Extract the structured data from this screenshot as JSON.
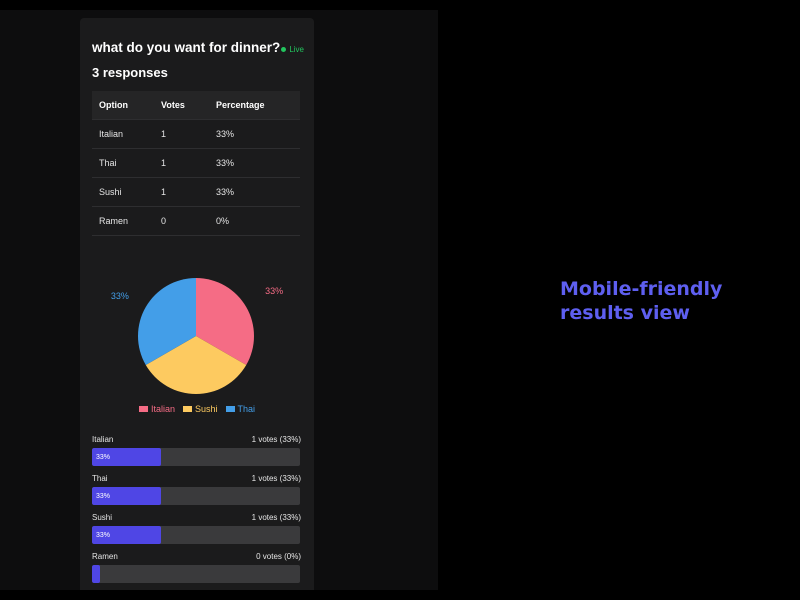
{
  "poll": {
    "title": "what do you want for dinner?",
    "live_label": "Live",
    "responses_label": "3 responses"
  },
  "table": {
    "headers": [
      "Option",
      "Votes",
      "Percentage"
    ],
    "rows": [
      {
        "option": "Italian",
        "votes": "1",
        "percentage": "33%"
      },
      {
        "option": "Thai",
        "votes": "1",
        "percentage": "33%"
      },
      {
        "option": "Sushi",
        "votes": "1",
        "percentage": "33%"
      },
      {
        "option": "Ramen",
        "votes": "0",
        "percentage": "0%"
      }
    ]
  },
  "chart_data": {
    "type": "pie",
    "slices": [
      {
        "label": "Italian",
        "value": 33,
        "display": "33%",
        "color": "#f56c85"
      },
      {
        "label": "Sushi",
        "value": 33,
        "display": "33%",
        "color": "#fdca60"
      },
      {
        "label": "Thai",
        "value": 33,
        "display": "33%",
        "color": "#439ee8"
      }
    ],
    "legend_placement": "bottom"
  },
  "legend": [
    {
      "label": "Italian",
      "color": "#f56c85"
    },
    {
      "label": "Sushi",
      "color": "#fdca60"
    },
    {
      "label": "Thai",
      "color": "#439ee8"
    }
  ],
  "bars": [
    {
      "label": "Italian",
      "summary": "1 votes (33%)",
      "fill_label": "33%",
      "fraction": 0.33
    },
    {
      "label": "Thai",
      "summary": "1 votes (33%)",
      "fill_label": "33%",
      "fraction": 0.33
    },
    {
      "label": "Sushi",
      "summary": "1 votes (33%)",
      "fill_label": "33%",
      "fraction": 0.33
    },
    {
      "label": "Ramen",
      "summary": "0 votes (0%)",
      "fill_label": "",
      "fraction": 0.0
    }
  ],
  "caption": {
    "line1": "Mobile-friendly",
    "line2": "results view"
  },
  "colors": {
    "accent": "#4f46e5",
    "live": "#22c55e",
    "caption": "#5e5ff0"
  }
}
